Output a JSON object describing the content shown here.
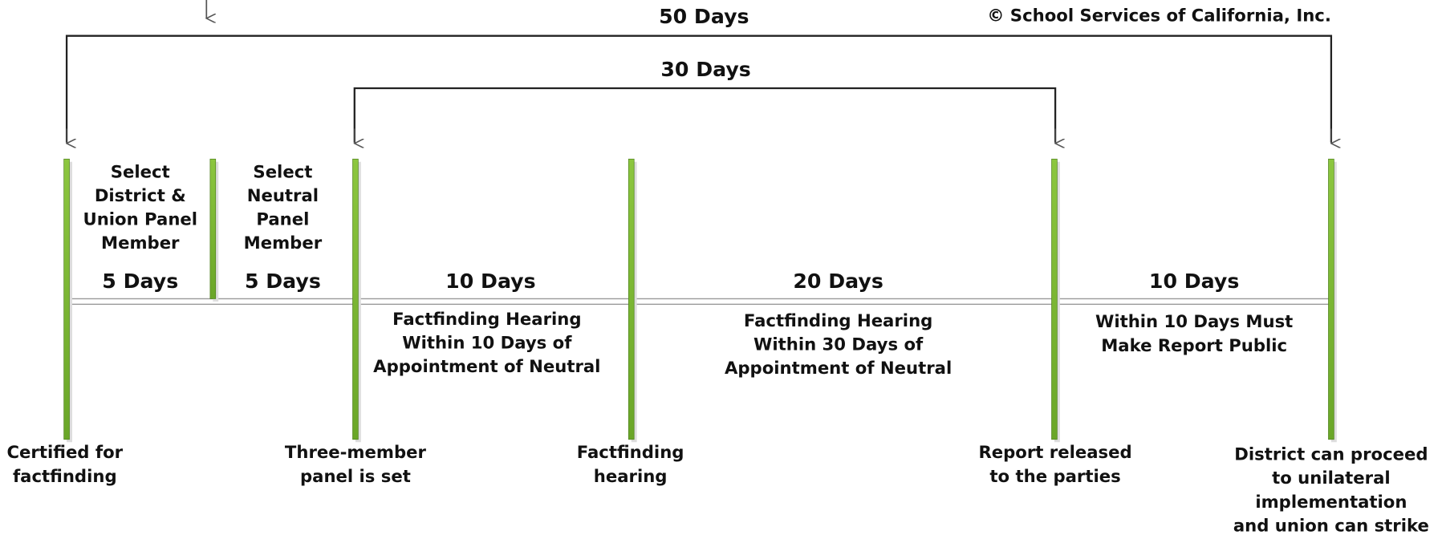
{
  "copyright": "© School Services of California, Inc.",
  "spans": [
    {
      "label": "50 Days"
    },
    {
      "label": "30 Days"
    }
  ],
  "segments": [
    {
      "title_lines": [
        "Select",
        "District &",
        "Union Panel",
        "Member"
      ],
      "duration": "5 Days",
      "note_lines": []
    },
    {
      "title_lines": [
        "Select",
        "Neutral",
        "Panel",
        "Member"
      ],
      "duration": "5 Days",
      "note_lines": []
    },
    {
      "title_lines": [],
      "duration": "10 Days",
      "note_lines": [
        "Factfinding Hearing",
        "Within 10 Days of",
        "Appointment of Neutral"
      ]
    },
    {
      "title_lines": [],
      "duration": "20 Days",
      "note_lines": [
        "Factfinding Hearing",
        "Within 30 Days of",
        "Appointment of Neutral"
      ]
    },
    {
      "title_lines": [],
      "duration": "10 Days",
      "note_lines": [
        "Within 10 Days Must",
        "Make Report Public"
      ]
    }
  ],
  "milestones": [
    {
      "lines": [
        "Certified for",
        "factfinding"
      ]
    },
    {
      "lines": [
        "Three-member",
        "panel is set"
      ]
    },
    {
      "lines": [
        "Factfinding",
        "hearing"
      ]
    },
    {
      "lines": [
        "Report released",
        "to the parties"
      ]
    },
    {
      "lines": [
        "District can proceed",
        "to unilateral",
        "implementation",
        "and union can strike"
      ]
    }
  ]
}
